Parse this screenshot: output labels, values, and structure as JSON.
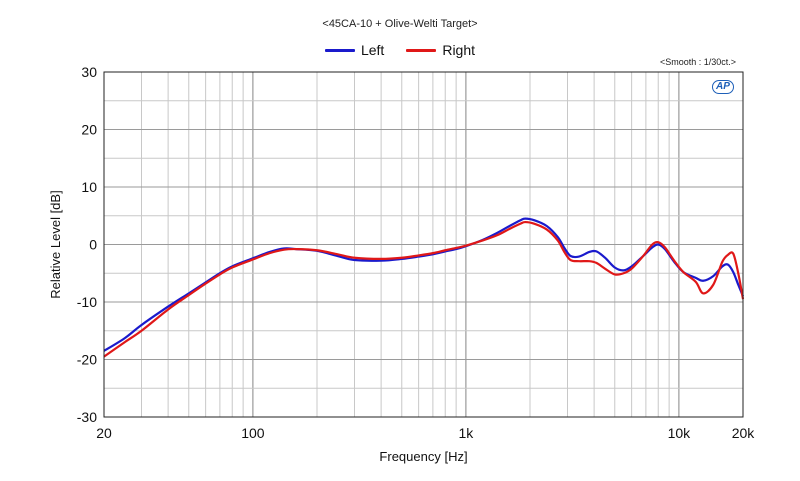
{
  "chart_data": {
    "type": "line",
    "title": "<45CA-10 + Olive-Welti Target>",
    "annotation": "<Smooth : 1/30ct.>",
    "logo_text": "AP",
    "xlabel": "Frequency [Hz]",
    "ylabel": "Relative Level [dB]",
    "x_scale": "log",
    "xlim": [
      20,
      20000
    ],
    "ylim": [
      -30,
      30
    ],
    "grid": true,
    "legend_position": "top-center",
    "x_ticks": [
      {
        "value": 20,
        "label": "20"
      },
      {
        "value": 100,
        "label": "100"
      },
      {
        "value": 1000,
        "label": "1k"
      },
      {
        "value": 10000,
        "label": "10k"
      },
      {
        "value": 20000,
        "label": "20k"
      }
    ],
    "y_ticks": [
      {
        "value": 30,
        "label": "30"
      },
      {
        "value": 20,
        "label": "20"
      },
      {
        "value": 10,
        "label": "10"
      },
      {
        "value": 0,
        "label": "0"
      },
      {
        "value": -10,
        "label": "-10"
      },
      {
        "value": -20,
        "label": "-20"
      },
      {
        "value": -30,
        "label": "-30"
      }
    ],
    "series": [
      {
        "name": "Left",
        "color": "#1a1acc",
        "points": [
          [
            20,
            -18.5
          ],
          [
            25,
            -16.3
          ],
          [
            30,
            -14.0
          ],
          [
            40,
            -10.8
          ],
          [
            50,
            -8.5
          ],
          [
            60,
            -6.6
          ],
          [
            70,
            -5.0
          ],
          [
            80,
            -3.8
          ],
          [
            100,
            -2.4
          ],
          [
            120,
            -1.3
          ],
          [
            140,
            -0.7
          ],
          [
            160,
            -0.8
          ],
          [
            200,
            -1.1
          ],
          [
            250,
            -2.0
          ],
          [
            300,
            -2.7
          ],
          [
            400,
            -2.8
          ],
          [
            500,
            -2.5
          ],
          [
            600,
            -2.1
          ],
          [
            700,
            -1.7
          ],
          [
            800,
            -1.2
          ],
          [
            900,
            -0.8
          ],
          [
            1000,
            -0.3
          ],
          [
            1200,
            0.8
          ],
          [
            1400,
            2.0
          ],
          [
            1600,
            3.2
          ],
          [
            1800,
            4.2
          ],
          [
            1900,
            4.5
          ],
          [
            2100,
            4.2
          ],
          [
            2400,
            3.2
          ],
          [
            2700,
            1.3
          ],
          [
            2900,
            -0.6
          ],
          [
            3100,
            -2.0
          ],
          [
            3400,
            -2.1
          ],
          [
            3800,
            -1.3
          ],
          [
            4100,
            -1.2
          ],
          [
            4500,
            -2.3
          ],
          [
            5000,
            -4.0
          ],
          [
            5500,
            -4.5
          ],
          [
            6000,
            -3.8
          ],
          [
            6800,
            -2.0
          ],
          [
            7500,
            -0.5
          ],
          [
            8000,
            0.0
          ],
          [
            8600,
            -0.8
          ],
          [
            9500,
            -3.0
          ],
          [
            10500,
            -4.8
          ],
          [
            12000,
            -5.8
          ],
          [
            13000,
            -6.3
          ],
          [
            14500,
            -5.5
          ],
          [
            16000,
            -3.8
          ],
          [
            17000,
            -3.5
          ],
          [
            18000,
            -4.8
          ],
          [
            19000,
            -7.0
          ],
          [
            20000,
            -9.0
          ]
        ]
      },
      {
        "name": "Right",
        "color": "#e01818",
        "points": [
          [
            20,
            -19.5
          ],
          [
            25,
            -17.0
          ],
          [
            30,
            -15.0
          ],
          [
            40,
            -11.3
          ],
          [
            50,
            -8.8
          ],
          [
            60,
            -6.8
          ],
          [
            70,
            -5.2
          ],
          [
            80,
            -4.0
          ],
          [
            100,
            -2.6
          ],
          [
            120,
            -1.5
          ],
          [
            140,
            -0.9
          ],
          [
            160,
            -0.8
          ],
          [
            200,
            -1.0
          ],
          [
            250,
            -1.7
          ],
          [
            300,
            -2.3
          ],
          [
            400,
            -2.5
          ],
          [
            500,
            -2.3
          ],
          [
            600,
            -1.9
          ],
          [
            700,
            -1.5
          ],
          [
            800,
            -1.0
          ],
          [
            900,
            -0.6
          ],
          [
            1000,
            -0.2
          ],
          [
            1200,
            0.7
          ],
          [
            1400,
            1.6
          ],
          [
            1600,
            2.7
          ],
          [
            1800,
            3.6
          ],
          [
            1900,
            3.9
          ],
          [
            2100,
            3.6
          ],
          [
            2400,
            2.6
          ],
          [
            2700,
            0.7
          ],
          [
            2900,
            -1.3
          ],
          [
            3100,
            -2.7
          ],
          [
            3400,
            -2.9
          ],
          [
            3800,
            -2.9
          ],
          [
            4100,
            -3.2
          ],
          [
            4500,
            -4.2
          ],
          [
            5000,
            -5.2
          ],
          [
            5500,
            -5.0
          ],
          [
            6000,
            -4.2
          ],
          [
            6800,
            -2.0
          ],
          [
            7500,
            0.0
          ],
          [
            8000,
            0.4
          ],
          [
            8600,
            -0.5
          ],
          [
            9500,
            -2.8
          ],
          [
            10500,
            -4.8
          ],
          [
            12000,
            -6.5
          ],
          [
            13000,
            -8.5
          ],
          [
            14500,
            -7.0
          ],
          [
            16000,
            -3.0
          ],
          [
            17000,
            -1.8
          ],
          [
            18000,
            -1.6
          ],
          [
            19000,
            -5.0
          ],
          [
            20000,
            -9.5
          ]
        ]
      }
    ]
  }
}
